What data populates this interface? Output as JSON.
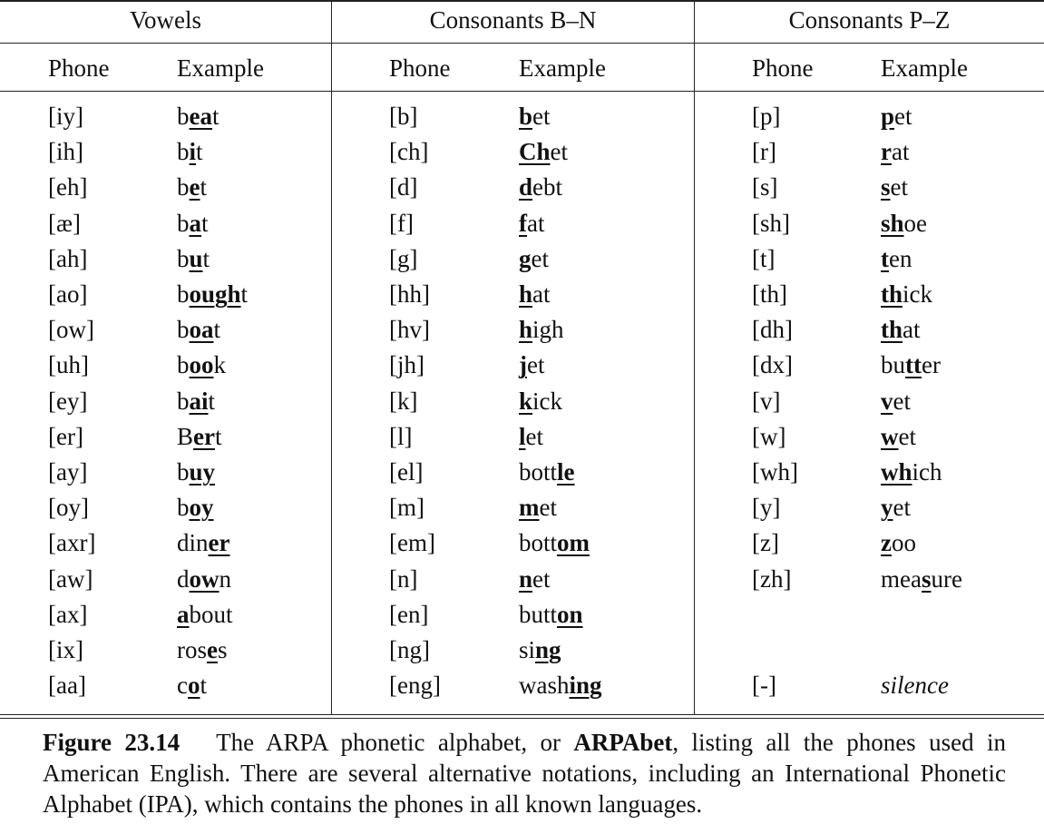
{
  "groups": [
    {
      "title": "Vowels",
      "phone_header": "Phone",
      "example_header": "Example",
      "rows": [
        {
          "phone": "[iy]",
          "ex": [
            [
              "b",
              ""
            ],
            [
              "ea",
              "u"
            ],
            [
              "t",
              ""
            ]
          ]
        },
        {
          "phone": "[ih]",
          "ex": [
            [
              "b",
              ""
            ],
            [
              "i",
              "u"
            ],
            [
              "t",
              ""
            ]
          ]
        },
        {
          "phone": "[eh]",
          "ex": [
            [
              "b",
              ""
            ],
            [
              "e",
              "u"
            ],
            [
              "t",
              ""
            ]
          ]
        },
        {
          "phone": "[æ]",
          "ex": [
            [
              "b",
              ""
            ],
            [
              "a",
              "u"
            ],
            [
              "t",
              ""
            ]
          ]
        },
        {
          "phone": "[ah]",
          "ex": [
            [
              "b",
              ""
            ],
            [
              "u",
              "u"
            ],
            [
              "t",
              ""
            ]
          ]
        },
        {
          "phone": "[ao]",
          "ex": [
            [
              "b",
              ""
            ],
            [
              "ough",
              "u"
            ],
            [
              "t",
              ""
            ]
          ]
        },
        {
          "phone": "[ow]",
          "ex": [
            [
              "b",
              ""
            ],
            [
              "oa",
              "u"
            ],
            [
              "t",
              ""
            ]
          ]
        },
        {
          "phone": "[uh]",
          "ex": [
            [
              "b",
              ""
            ],
            [
              "oo",
              "u"
            ],
            [
              "k",
              ""
            ]
          ]
        },
        {
          "phone": "[ey]",
          "ex": [
            [
              "b",
              ""
            ],
            [
              "ai",
              "u"
            ],
            [
              "t",
              ""
            ]
          ]
        },
        {
          "phone": "[er]",
          "ex": [
            [
              "B",
              ""
            ],
            [
              "er",
              "u"
            ],
            [
              "t",
              ""
            ]
          ]
        },
        {
          "phone": "[ay]",
          "ex": [
            [
              "b",
              ""
            ],
            [
              "uy",
              "u"
            ]
          ]
        },
        {
          "phone": "[oy]",
          "ex": [
            [
              "b",
              ""
            ],
            [
              "oy",
              "u"
            ]
          ]
        },
        {
          "phone": "[axr]",
          "ex": [
            [
              "din",
              ""
            ],
            [
              "er",
              "u"
            ]
          ]
        },
        {
          "phone": "[aw]",
          "ex": [
            [
              "d",
              ""
            ],
            [
              "ow",
              "u"
            ],
            [
              "n",
              ""
            ]
          ]
        },
        {
          "phone": "[ax]",
          "ex": [
            [
              "a",
              "u"
            ],
            [
              "bout",
              ""
            ]
          ]
        },
        {
          "phone": "[ix]",
          "ex": [
            [
              "ros",
              ""
            ],
            [
              "e",
              "u"
            ],
            [
              "s",
              ""
            ]
          ]
        },
        {
          "phone": "[aa]",
          "ex": [
            [
              "c",
              ""
            ],
            [
              "o",
              "u"
            ],
            [
              "t",
              ""
            ]
          ]
        }
      ]
    },
    {
      "title": "Consonants B–N",
      "phone_header": "Phone",
      "example_header": "Example",
      "rows": [
        {
          "phone": "[b]",
          "ex": [
            [
              "b",
              "u"
            ],
            [
              "et",
              ""
            ]
          ]
        },
        {
          "phone": "[ch]",
          "ex": [
            [
              "Ch",
              "u"
            ],
            [
              "et",
              ""
            ]
          ]
        },
        {
          "phone": "[d]",
          "ex": [
            [
              "d",
              "u"
            ],
            [
              "ebt",
              ""
            ]
          ]
        },
        {
          "phone": "[f]",
          "ex": [
            [
              "f",
              "u"
            ],
            [
              "at",
              ""
            ]
          ]
        },
        {
          "phone": "[g]",
          "ex": [
            [
              "g",
              "u"
            ],
            [
              "et",
              ""
            ]
          ]
        },
        {
          "phone": "[hh]",
          "ex": [
            [
              "h",
              "u"
            ],
            [
              "at",
              ""
            ]
          ]
        },
        {
          "phone": "[hv]",
          "ex": [
            [
              "h",
              "u"
            ],
            [
              "igh",
              ""
            ]
          ]
        },
        {
          "phone": "[jh]",
          "ex": [
            [
              "j",
              "u"
            ],
            [
              "et",
              ""
            ]
          ]
        },
        {
          "phone": "[k]",
          "ex": [
            [
              "k",
              "u"
            ],
            [
              "ick",
              ""
            ]
          ]
        },
        {
          "phone": "[l]",
          "ex": [
            [
              "l",
              "u"
            ],
            [
              "et",
              ""
            ]
          ]
        },
        {
          "phone": "[el]",
          "ex": [
            [
              "bott",
              ""
            ],
            [
              "le",
              "u"
            ]
          ]
        },
        {
          "phone": "[m]",
          "ex": [
            [
              "m",
              "u"
            ],
            [
              "et",
              ""
            ]
          ]
        },
        {
          "phone": "[em]",
          "ex": [
            [
              "bott",
              ""
            ],
            [
              "om",
              "u"
            ]
          ]
        },
        {
          "phone": "[n]",
          "ex": [
            [
              "n",
              "u"
            ],
            [
              "et",
              ""
            ]
          ]
        },
        {
          "phone": "[en]",
          "ex": [
            [
              "butt",
              ""
            ],
            [
              "on",
              "u"
            ]
          ]
        },
        {
          "phone": "[ng]",
          "ex": [
            [
              "si",
              ""
            ],
            [
              "ng",
              "u"
            ]
          ]
        },
        {
          "phone": "[eng]",
          "ex": [
            [
              "wash",
              ""
            ],
            [
              "ing",
              "u"
            ]
          ]
        }
      ]
    },
    {
      "title": "Consonants P–Z",
      "phone_header": "Phone",
      "example_header": "Example",
      "rows": [
        {
          "phone": "[p]",
          "ex": [
            [
              "p",
              "u"
            ],
            [
              "et",
              ""
            ]
          ]
        },
        {
          "phone": "[r]",
          "ex": [
            [
              "r",
              "u"
            ],
            [
              "at",
              ""
            ]
          ]
        },
        {
          "phone": "[s]",
          "ex": [
            [
              "s",
              "u"
            ],
            [
              "et",
              ""
            ]
          ]
        },
        {
          "phone": "[sh]",
          "ex": [
            [
              "sh",
              "u"
            ],
            [
              "oe",
              ""
            ]
          ]
        },
        {
          "phone": "[t]",
          "ex": [
            [
              "t",
              "u"
            ],
            [
              "en",
              ""
            ]
          ]
        },
        {
          "phone": "[th]",
          "ex": [
            [
              "th",
              "u"
            ],
            [
              "ick",
              ""
            ]
          ]
        },
        {
          "phone": "[dh]",
          "ex": [
            [
              "th",
              "u"
            ],
            [
              "at",
              ""
            ]
          ]
        },
        {
          "phone": "[dx]",
          "ex": [
            [
              "bu",
              ""
            ],
            [
              "tt",
              "u"
            ],
            [
              "er",
              ""
            ]
          ]
        },
        {
          "phone": "[v]",
          "ex": [
            [
              "v",
              "u"
            ],
            [
              "et",
              ""
            ]
          ]
        },
        {
          "phone": "[w]",
          "ex": [
            [
              "w",
              "u"
            ],
            [
              "et",
              ""
            ]
          ]
        },
        {
          "phone": "[wh]",
          "ex": [
            [
              "wh",
              "u"
            ],
            [
              "ich",
              ""
            ]
          ]
        },
        {
          "phone": "[y]",
          "ex": [
            [
              "y",
              "u"
            ],
            [
              "et",
              ""
            ]
          ]
        },
        {
          "phone": "[z]",
          "ex": [
            [
              "z",
              "u"
            ],
            [
              "oo",
              ""
            ]
          ]
        },
        {
          "phone": "[zh]",
          "ex": [
            [
              "mea",
              ""
            ],
            [
              "s",
              "u"
            ],
            [
              "ure",
              ""
            ]
          ]
        },
        null,
        null,
        {
          "phone": "[-]",
          "ex": [
            [
              "silence",
              "i"
            ]
          ]
        }
      ]
    }
  ],
  "caption": {
    "figure_label": "Figure 23.14",
    "text_before": "The ARPA phonetic alphabet, or ",
    "keyword": "ARPAbet",
    "text_after": ", listing all the phones used in American English.  There are several alternative notations, including an International Phonetic Alphabet (IPA), which contains the phones in all known languages."
  }
}
